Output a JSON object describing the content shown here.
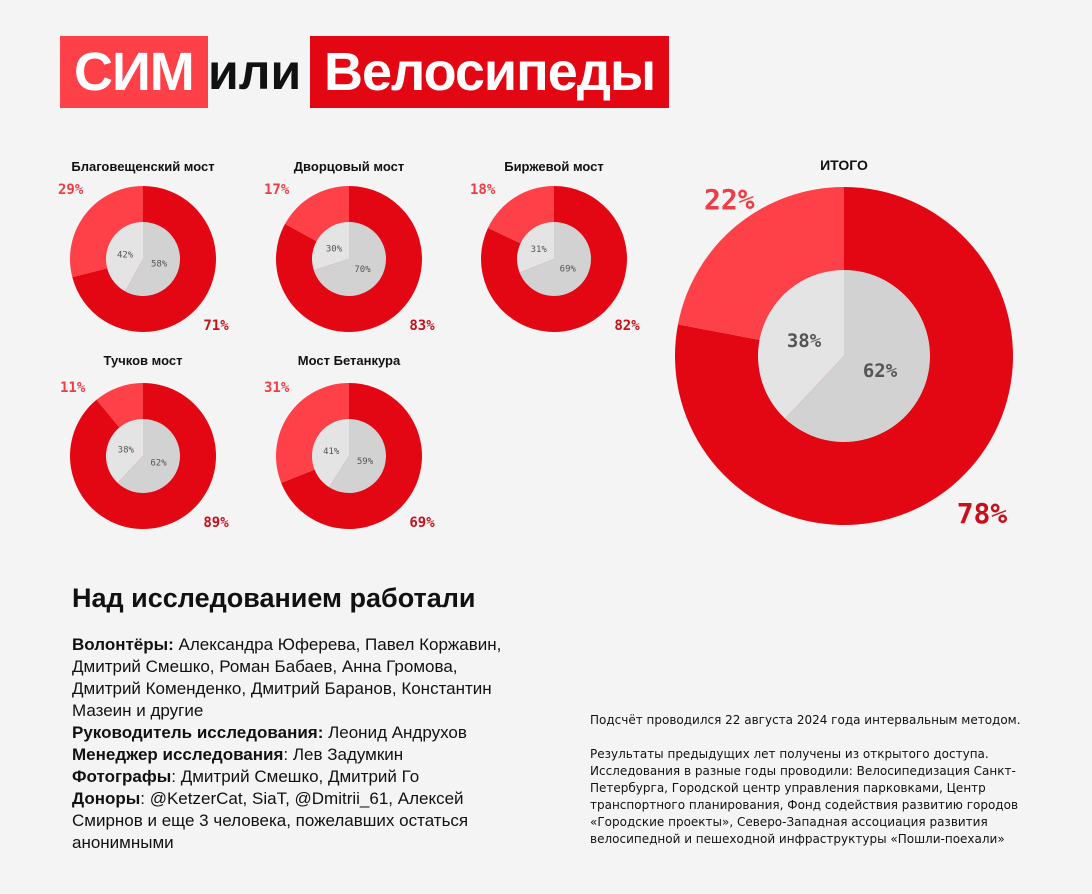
{
  "header": {
    "part1": "СИМ",
    "part2": "или",
    "part3": "Велосипеды"
  },
  "colors": {
    "outer_major": "#e30613",
    "outer_minor": "#fe4048",
    "inner_major": "#d2d2d2",
    "inner_minor": "#e4e4e4",
    "label_major": "#c8101b",
    "label_minor": "#f03c44",
    "inner_label": "#555555"
  },
  "chart_data": [
    {
      "type": "pie",
      "title": "Благовещенский мост",
      "outer": [
        {
          "value": 71,
          "label": "71%"
        },
        {
          "value": 29,
          "label": "29%"
        }
      ],
      "inner": [
        {
          "value": 58,
          "label": "58%"
        },
        {
          "value": 42,
          "label": "42%"
        }
      ]
    },
    {
      "type": "pie",
      "title": "Дворцовый мост",
      "outer": [
        {
          "value": 83,
          "label": "83%"
        },
        {
          "value": 17,
          "label": "17%"
        }
      ],
      "inner": [
        {
          "value": 70,
          "label": "70%"
        },
        {
          "value": 30,
          "label": "30%"
        }
      ]
    },
    {
      "type": "pie",
      "title": "Биржевой мост",
      "outer": [
        {
          "value": 82,
          "label": "82%"
        },
        {
          "value": 18,
          "label": "18%"
        }
      ],
      "inner": [
        {
          "value": 69,
          "label": "69%"
        },
        {
          "value": 31,
          "label": "31%"
        }
      ]
    },
    {
      "type": "pie",
      "title": "Тучков мост",
      "outer": [
        {
          "value": 89,
          "label": "89%"
        },
        {
          "value": 11,
          "label": "11%"
        }
      ],
      "inner": [
        {
          "value": 62,
          "label": "62%"
        },
        {
          "value": 38,
          "label": "38%"
        }
      ]
    },
    {
      "type": "pie",
      "title": "Мост Бетанкура",
      "outer": [
        {
          "value": 69,
          "label": "69%"
        },
        {
          "value": 31,
          "label": "31%"
        }
      ],
      "inner": [
        {
          "value": 59,
          "label": "59%"
        },
        {
          "value": 41,
          "label": "41%"
        }
      ]
    },
    {
      "type": "pie",
      "title": "ИТОГО",
      "outer": [
        {
          "value": 78,
          "label": "78%"
        },
        {
          "value": 22,
          "label": "22%"
        }
      ],
      "inner": [
        {
          "value": 62,
          "label": "62%"
        },
        {
          "value": 38,
          "label": "38%"
        }
      ]
    }
  ],
  "credits": {
    "heading": "Над исследованием работали",
    "volunteers_label": "Волонтёры:",
    "volunteers_text": " Александра Юферева, Павел Коржавин, Дмитрий Смешко, Роман Бабаев, Анна Громова, Дмитрий Коменденко, Дмитрий Баранов, Константин Мазеин и другие",
    "lead_label": "Руководитель исследования:",
    "lead_text": " Леонид Андрухов",
    "manager_label": "Менеджер исследования",
    "manager_text": ": Лев Задумкин",
    "photo_label": "Фотографы",
    "photo_text": ": Дмитрий Смешко, Дмитрий Го",
    "donors_label": "Доноры",
    "donors_text": ": @KetzerCat, SiaT, @Dmitrii_61, Алексей Смирнов и еще 3 человека, пожелавших остаться анонимными"
  },
  "notes": {
    "line1": "Подсчёт проводился 22 августа 2024 года интервальным методом.",
    "paragraph2": "Результаты предыдущих лет получены из открытого доступа. Исследования в разные годы проводили: Велосипедизация Санкт-Петербурга, Городской центр управления парковками, Центр транспортного планирования, Фонд содействия развитию городов «Городские проекты», Северо-Западная ассоциация развития велосипедной и пешеходной инфраструктуры «Пошли-поехали»"
  }
}
